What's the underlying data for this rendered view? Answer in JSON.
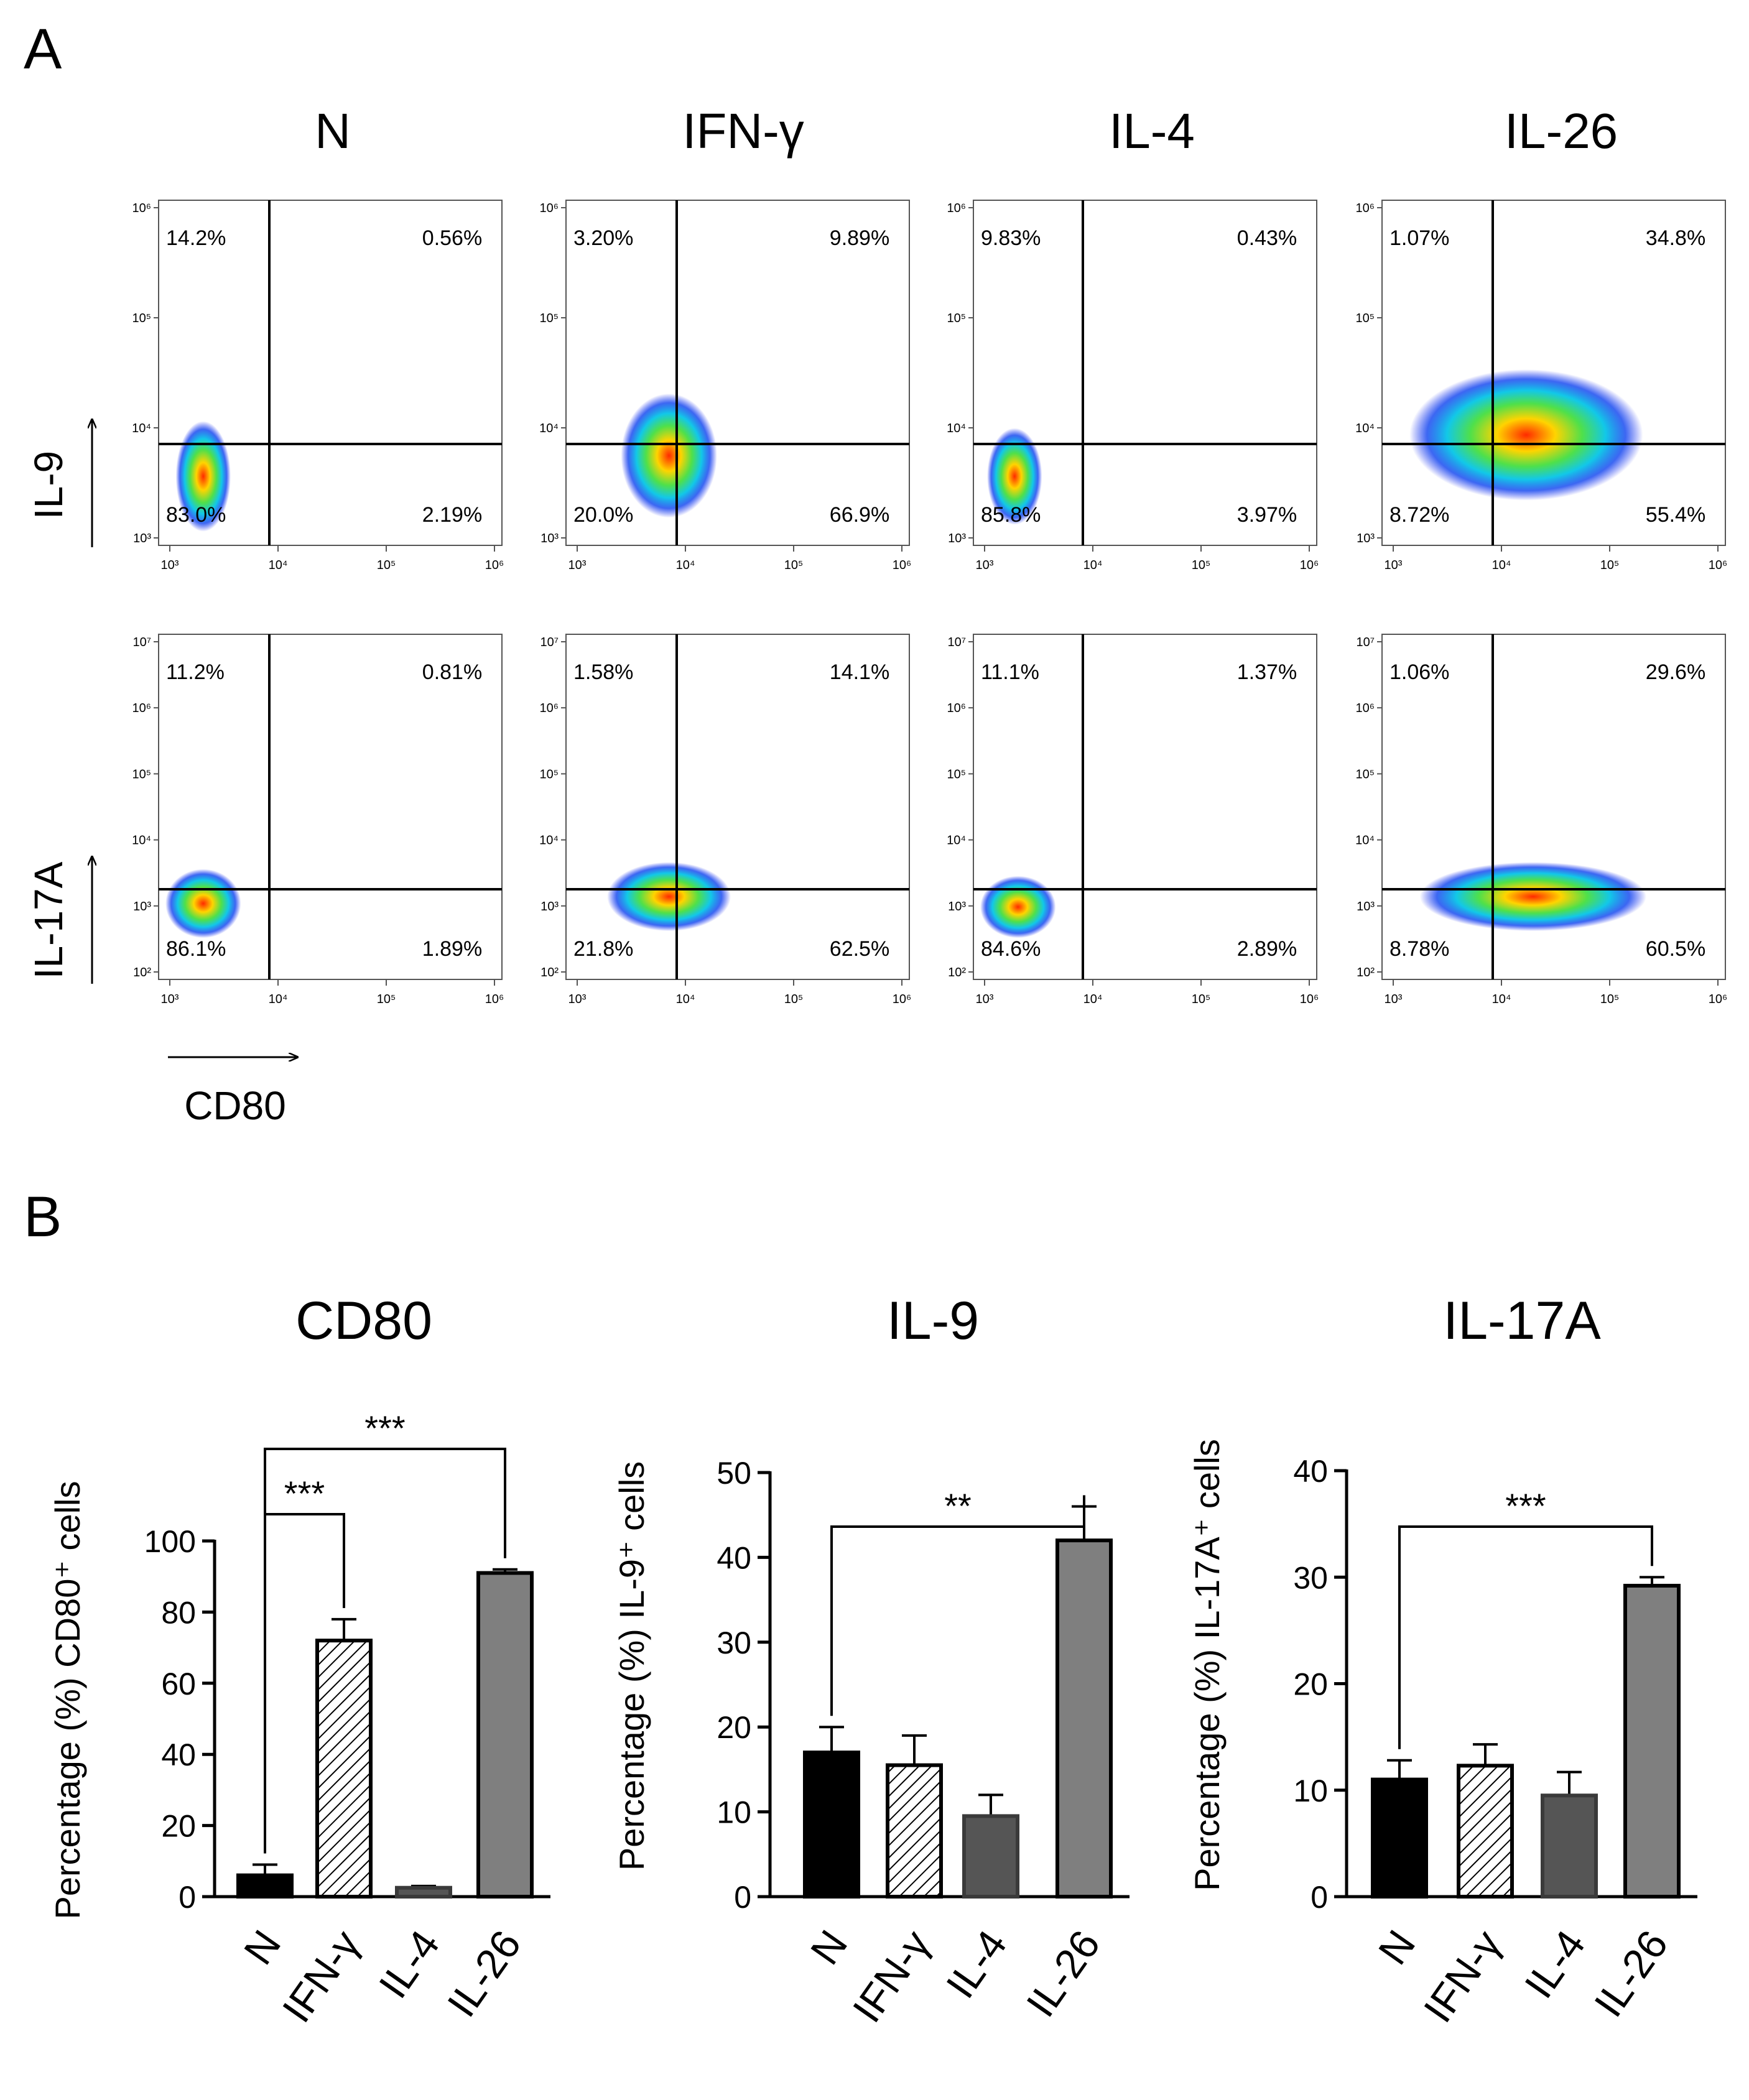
{
  "panel_labels": {
    "a": "A",
    "b": "B"
  },
  "flow": {
    "columns": [
      "N",
      "IFN-γ",
      "IL-4",
      "IL-26"
    ],
    "x_axis_label": "CD80",
    "rows": [
      {
        "y_axis_label": "IL-9",
        "x_ticks": [
          "10³",
          "10⁴",
          "10⁵",
          "10⁶"
        ],
        "y_ticks": [
          "10³",
          "10⁴",
          "10⁵",
          "10⁶"
        ],
        "quadrants": [
          {
            "ul": "14.2%",
            "ur": "0.56%",
            "ll": "83.0%",
            "lr": "2.19%"
          },
          {
            "ul": "3.20%",
            "ur": "9.89%",
            "ll": "20.0%",
            "lr": "66.9%"
          },
          {
            "ul": "9.83%",
            "ur": "0.43%",
            "ll": "85.8%",
            "lr": "3.97%"
          },
          {
            "ul": "1.07%",
            "ur": "34.8%",
            "ll": "8.72%",
            "lr": "55.4%"
          }
        ]
      },
      {
        "y_axis_label": "IL-17A",
        "x_ticks": [
          "10³",
          "10⁴",
          "10⁵",
          "10⁶"
        ],
        "y_ticks": [
          "10²",
          "10³",
          "10⁴",
          "10⁵",
          "10⁶",
          "10⁷"
        ],
        "quadrants": [
          {
            "ul": "11.2%",
            "ur": "0.81%",
            "ll": "86.1%",
            "lr": "1.89%"
          },
          {
            "ul": "1.58%",
            "ur": "14.1%",
            "ll": "21.8%",
            "lr": "62.5%"
          },
          {
            "ul": "11.1%",
            "ur": "1.37%",
            "ll": "84.6%",
            "lr": "2.89%"
          },
          {
            "ul": "1.06%",
            "ur": "29.6%",
            "ll": "8.78%",
            "lr": "60.5%"
          }
        ]
      }
    ]
  },
  "chart_data": [
    {
      "type": "bar",
      "title": "CD80",
      "ylabel": "Percentage (%) CD80⁺ cells",
      "categories": [
        "N",
        "IFN-γ",
        "IL-4",
        "IL-26"
      ],
      "values": [
        6,
        72,
        2.5,
        91
      ],
      "errors": [
        3,
        6,
        0.5,
        1
      ],
      "ylim": [
        0,
        100
      ],
      "yticks": [
        0,
        20,
        40,
        60,
        80,
        100
      ],
      "tick_labels": [
        "0",
        "20",
        "40",
        "60",
        "80",
        "100"
      ],
      "significance": [
        {
          "from": 0,
          "to": 1,
          "label": "***"
        },
        {
          "from": 0,
          "to": 3,
          "label": "***"
        }
      ]
    },
    {
      "type": "bar",
      "title": "IL-9",
      "ylabel": "Percentage (%) IL-9⁺ cells",
      "categories": [
        "N",
        "IFN-γ",
        "IL-4",
        "IL-26"
      ],
      "values": [
        17,
        15.5,
        9.5,
        42
      ],
      "errors": [
        3,
        3.5,
        2.5,
        4
      ],
      "ylim": [
        0,
        50
      ],
      "yticks": [
        0,
        10,
        20,
        30,
        40,
        50
      ],
      "tick_labels": [
        "0",
        "10",
        "20",
        "30",
        "40",
        "50"
      ],
      "significance": [
        {
          "from": 0,
          "to": 3,
          "label": "**"
        }
      ]
    },
    {
      "type": "bar",
      "title": "IL-17A",
      "ylabel": "Percentage (%) IL-17A⁺ cells",
      "categories": [
        "N",
        "IFN-γ",
        "IL-4",
        "IL-26"
      ],
      "values": [
        11,
        12.3,
        9.5,
        29.2
      ],
      "errors": [
        1.8,
        2,
        2.2,
        0.8
      ],
      "ylim": [
        0,
        40
      ],
      "yticks": [
        0,
        10,
        20,
        30,
        40
      ],
      "tick_labels": [
        "0",
        "10",
        "20",
        "30",
        "40"
      ],
      "significance": [
        {
          "from": 0,
          "to": 3,
          "label": "***"
        }
      ]
    }
  ]
}
